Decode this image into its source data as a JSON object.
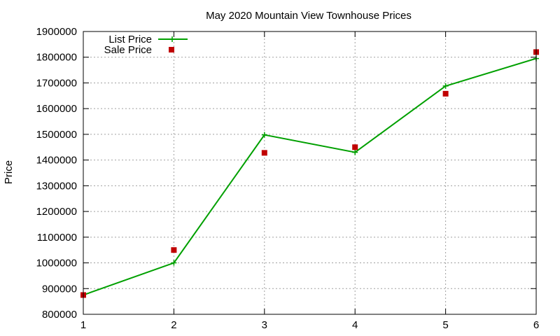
{
  "chart_data": {
    "type": "line",
    "title": "May 2020 Mountain View Townhouse Prices",
    "xlabel": "",
    "ylabel": "Price",
    "x": [
      1,
      2,
      3,
      4,
      5,
      6
    ],
    "xlim": [
      1,
      6
    ],
    "ylim": [
      800000,
      1900000
    ],
    "x_ticks": [
      "1",
      "2",
      "3",
      "4",
      "5",
      "6"
    ],
    "y_ticks": [
      "800000",
      "900000",
      "1000000",
      "1100000",
      "1200000",
      "1300000",
      "1400000",
      "1500000",
      "1600000",
      "1700000",
      "1800000",
      "1900000"
    ],
    "grid": true,
    "legend_position": "top-left",
    "series": [
      {
        "name": "List Price",
        "style": "line-with-plus-markers",
        "color": "#00a000",
        "values": [
          875000,
          1000000,
          1498000,
          1430000,
          1688000,
          1795000
        ]
      },
      {
        "name": "Sale Price",
        "style": "square-markers",
        "color": "#c00000",
        "values": [
          875000,
          1050000,
          1428000,
          1450000,
          1658000,
          1820000
        ]
      }
    ]
  }
}
